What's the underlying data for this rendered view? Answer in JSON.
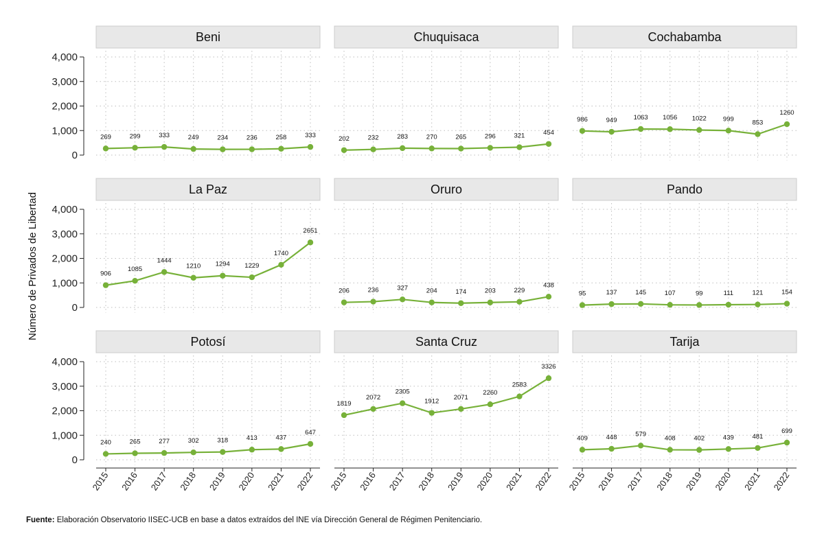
{
  "chart_data": {
    "type": "line",
    "layout": "facet-grid 3x3",
    "ylabel": "Número de Privados de Libertad",
    "yticks": [
      "0",
      "1,000",
      "2,000",
      "3,000",
      "4,000"
    ],
    "ylim": [
      0,
      4000
    ],
    "x": [
      "2015",
      "2016",
      "2017",
      "2018",
      "2019",
      "2020",
      "2021",
      "2022"
    ],
    "line_color": "#77b139",
    "grid": "dotted",
    "data_labels": true,
    "panels": [
      {
        "name": "Beni",
        "values": [
          269,
          299,
          333,
          249,
          234,
          236,
          258,
          333
        ]
      },
      {
        "name": "Chuquisaca",
        "values": [
          202,
          232,
          283,
          270,
          265,
          296,
          321,
          454
        ]
      },
      {
        "name": "Cochabamba",
        "values": [
          986,
          949,
          1063,
          1056,
          1022,
          999,
          853,
          1260
        ]
      },
      {
        "name": "La Paz",
        "values": [
          906,
          1085,
          1444,
          1210,
          1294,
          1229,
          1740,
          2651
        ]
      },
      {
        "name": "Oruro",
        "values": [
          206,
          236,
          327,
          204,
          174,
          203,
          229,
          438
        ]
      },
      {
        "name": "Pando",
        "values": [
          95,
          137,
          145,
          107,
          99,
          111,
          121,
          154
        ]
      },
      {
        "name": "Potosí",
        "values": [
          240,
          265,
          277,
          302,
          318,
          413,
          437,
          647
        ]
      },
      {
        "name": "Santa Cruz",
        "values": [
          1819,
          2072,
          2305,
          1912,
          2071,
          2260,
          2583,
          3326
        ]
      },
      {
        "name": "Tarija",
        "values": [
          409,
          448,
          579,
          408,
          402,
          439,
          481,
          699
        ]
      }
    ]
  },
  "source": {
    "label": "Fuente:",
    "text": " Elaboración Observatorio IISEC-UCB en base a datos  extraídos del INE vía Dirección General de Régimen Penitenciario."
  }
}
